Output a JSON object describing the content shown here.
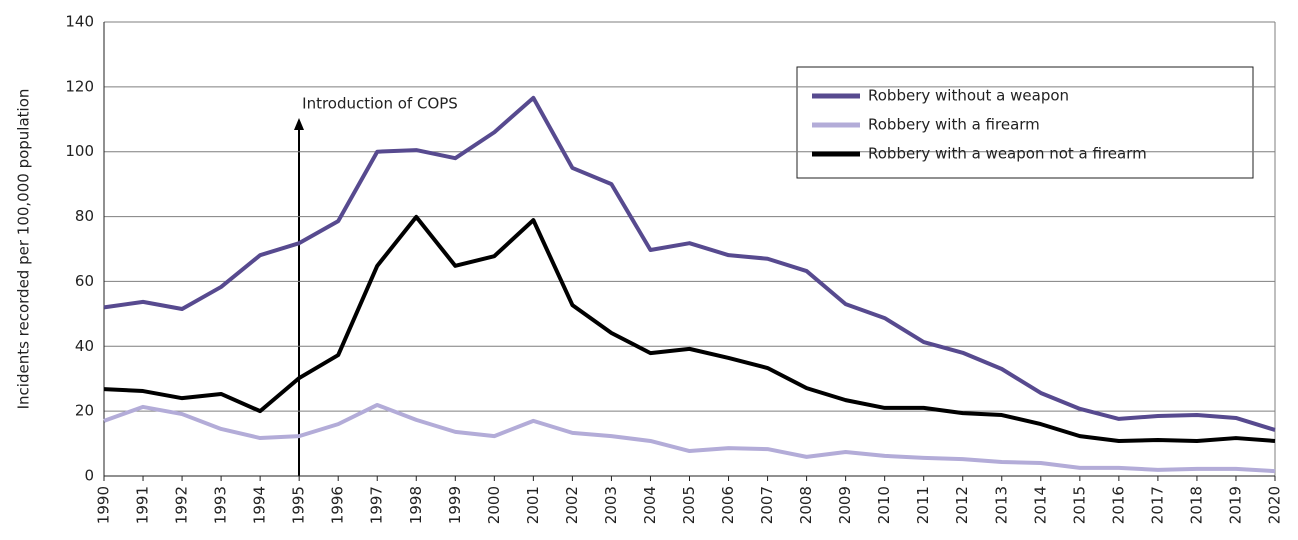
{
  "chart_data": {
    "type": "line",
    "y_label": "Incidents recorded per 100,000 population",
    "annotation": "Introduction of COPS",
    "categories": [
      "1990",
      "1991",
      "1992",
      "1993",
      "1994",
      "1995",
      "1996",
      "1997",
      "1998",
      "1999",
      "2000",
      "2001",
      "2002",
      "2003",
      "2004",
      "2005",
      "2006",
      "2007",
      "2008",
      "2009",
      "2010",
      "2011",
      "2012",
      "2013",
      "2014",
      "2015",
      "2016",
      "2017",
      "2018",
      "2019",
      "2020"
    ],
    "series": [
      {
        "name": "Robbery without a weapon",
        "color": "#574a8f",
        "values": [
          52,
          53.7,
          51.5,
          58.3,
          68.1,
          71.8,
          78.6,
          100,
          100.5,
          98,
          106,
          116.6,
          95,
          90,
          69.7,
          71.8,
          68.1,
          67,
          63.2,
          53,
          48.7,
          41.3,
          38,
          33,
          25.6,
          20.7,
          17.6,
          18.5,
          18.8,
          17.9,
          14.2
        ]
      },
      {
        "name": "Robbery with a firearm",
        "color": "#b3acd8",
        "values": [
          17,
          21.3,
          19.1,
          14.5,
          11.7,
          12.3,
          16,
          21.9,
          17.3,
          13.6,
          12.3,
          17,
          13.3,
          12.3,
          10.8,
          7.7,
          8.6,
          8.3,
          5.9,
          7.4,
          6.2,
          5.6,
          5.2,
          4.3,
          4,
          2.5,
          2.5,
          1.9,
          2.2,
          2.2,
          1.5
        ]
      },
      {
        "name": "Robbery with a weapon not a firearm",
        "color": "#000000",
        "values": [
          26.8,
          26.2,
          24,
          25.3,
          20,
          30.2,
          37.3,
          64.8,
          79.9,
          64.8,
          67.8,
          78.9,
          52.7,
          44.1,
          37.9,
          39.2,
          36.4,
          33.3,
          27.1,
          23.4,
          21,
          21,
          19.4,
          18.8,
          16,
          12.3,
          10.8,
          11.1,
          10.8,
          11.7,
          10.8
        ]
      }
    ],
    "ylim": [
      0,
      140
    ],
    "yticks": [
      0,
      20,
      40,
      60,
      80,
      100,
      120,
      140
    ],
    "grid": true
  }
}
